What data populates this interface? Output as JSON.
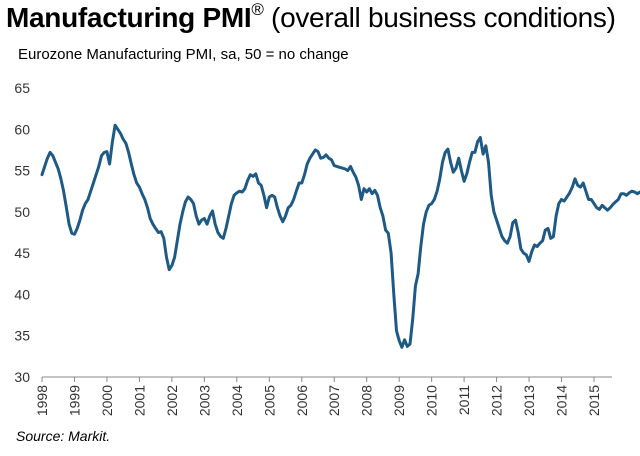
{
  "chart_data": {
    "type": "line",
    "title": "Manufacturing PMI",
    "title_mark": "®",
    "title_suffix": " (overall business conditions)",
    "subtitle": "Eurozone Manufacturing PMI, sa, 50 = no change",
    "source": "Source: Markit.",
    "xlabel": "",
    "ylabel": "",
    "ylim": [
      30,
      65
    ],
    "yticks": [
      30,
      35,
      40,
      45,
      50,
      55,
      60,
      65
    ],
    "xticks": [
      "1998",
      "1999",
      "2000",
      "2001",
      "2002",
      "2003",
      "2004",
      "2005",
      "2006",
      "2007",
      "2008",
      "2009",
      "2010",
      "2011",
      "2012",
      "2013",
      "2014",
      "2015"
    ],
    "x_start": 1998.0,
    "x_step_months": 1,
    "grid": false,
    "line_color": "#1f5a85",
    "series": [
      {
        "name": "Eurozone Manufacturing PMI",
        "values": [
          54.5,
          55.5,
          56.5,
          57.2,
          56.8,
          56.0,
          55.2,
          54.0,
          52.5,
          50.5,
          48.5,
          47.4,
          47.3,
          48.0,
          49.0,
          50.2,
          51.0,
          51.5,
          52.5,
          53.5,
          54.5,
          55.5,
          56.8,
          57.2,
          57.3,
          55.8,
          58.5,
          60.5,
          60.0,
          59.5,
          58.8,
          58.3,
          57.2,
          55.8,
          54.5,
          53.5,
          53.0,
          52.2,
          51.5,
          50.5,
          49.2,
          48.5,
          48.0,
          47.5,
          47.6,
          46.8,
          44.5,
          43.0,
          43.5,
          44.5,
          46.5,
          48.5,
          50.0,
          51.2,
          51.8,
          51.5,
          51.0,
          49.5,
          48.5,
          49.0,
          49.2,
          48.5,
          49.5,
          50.1,
          48.5,
          47.5,
          47.0,
          46.8,
          48.0,
          49.5,
          51.0,
          52.0,
          52.3,
          52.5,
          52.4,
          52.8,
          53.8,
          54.5,
          54.3,
          54.6,
          53.5,
          53.2,
          52.0,
          50.5,
          51.8,
          52.0,
          51.8,
          50.5,
          49.5,
          48.8,
          49.5,
          50.5,
          50.8,
          51.5,
          52.5,
          53.5,
          53.5,
          54.5,
          55.8,
          56.5,
          57.0,
          57.5,
          57.3,
          56.5,
          56.6,
          56.9,
          56.5,
          56.3,
          55.6,
          55.5,
          55.4,
          55.3,
          55.2,
          55.0,
          55.5,
          54.8,
          54.2,
          53.2,
          51.5,
          52.8,
          52.4,
          52.8,
          52.2,
          52.6,
          52.0,
          50.5,
          49.5,
          47.8,
          47.4,
          45.0,
          40.0,
          35.6,
          34.4,
          33.6,
          34.5,
          33.7,
          34.0,
          37.0,
          41.0,
          42.5,
          45.8,
          48.5,
          50.0,
          50.8,
          51.0,
          51.5,
          52.5,
          54.0,
          56.0,
          57.2,
          57.6,
          56.0,
          54.8,
          55.3,
          56.5,
          55.0,
          53.7,
          54.6,
          56.0,
          57.2,
          57.2,
          58.5,
          59.0,
          57.0,
          58.0,
          56.0,
          52.0,
          50.0,
          49.0,
          48.0,
          47.0,
          46.5,
          46.2,
          47.0,
          48.7,
          49.0,
          47.5,
          45.5,
          45.0,
          44.8,
          44.0,
          45.2,
          46.0,
          45.8,
          46.2,
          46.5,
          47.8,
          48.0,
          46.8,
          47.0,
          49.5,
          51.0,
          51.5,
          51.3,
          51.8,
          52.3,
          53.0,
          54.0,
          53.2,
          53.0,
          53.5,
          52.5,
          51.5,
          51.5,
          51.0,
          50.5,
          50.3,
          50.8,
          50.5,
          50.2,
          50.5,
          50.9,
          51.2,
          51.5,
          52.2,
          52.2,
          52.0,
          52.3,
          52.5,
          52.4,
          52.2,
          52.4,
          52.0,
          52.3,
          52.8
        ]
      }
    ]
  }
}
